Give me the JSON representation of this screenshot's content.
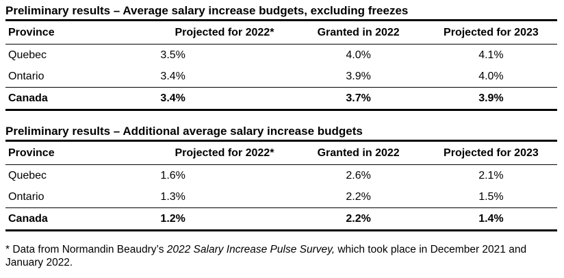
{
  "tables": [
    {
      "title": "Preliminary results – Average salary increase budgets, excluding freezes",
      "headers": [
        "Province",
        "Projected for 2022*",
        "Granted in 2022",
        "Projected for 2023"
      ],
      "rows": [
        [
          "Quebec",
          "3.5%",
          "4.0%",
          "4.1%"
        ],
        [
          "Ontario",
          "3.4%",
          "3.9%",
          "4.0%"
        ]
      ],
      "total": [
        "Canada",
        "3.4%",
        "3.7%",
        "3.9%"
      ]
    },
    {
      "title": "Preliminary results – Additional average salary increase budgets",
      "headers": [
        "Province",
        "Projected for 2022*",
        "Granted in 2022",
        "Projected for 2023"
      ],
      "rows": [
        [
          "Quebec",
          "1.6%",
          "2.6%",
          "2.1%"
        ],
        [
          "Ontario",
          "1.3%",
          "2.2%",
          "1.5%"
        ]
      ],
      "total": [
        "Canada",
        "1.2%",
        "2.2%",
        "1.4%"
      ]
    }
  ],
  "footnote": {
    "prefix": "* Data from Normandin Beaudry’s ",
    "survey_name": "2022 Salary Increase Pulse Survey,",
    "suffix": " which took place in December 2021 and January 2022."
  }
}
